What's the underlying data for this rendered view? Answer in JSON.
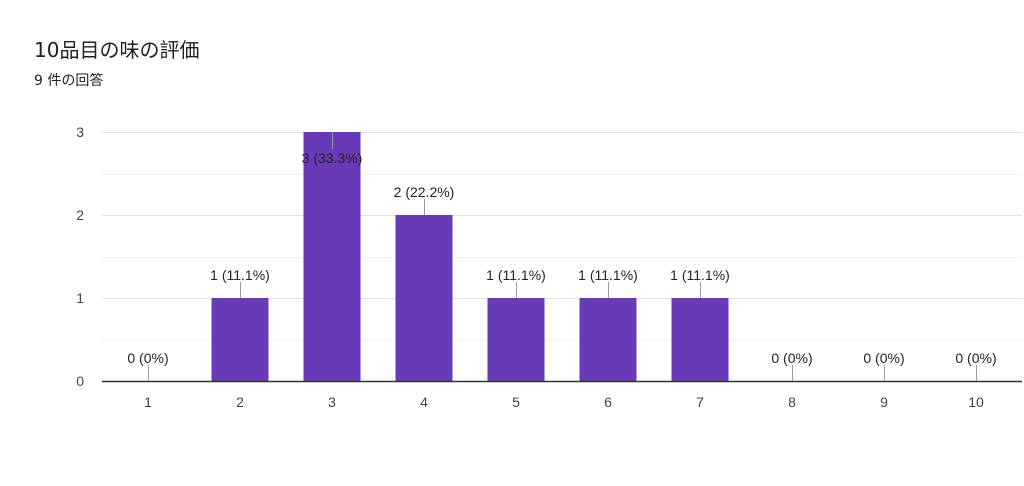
{
  "chart_data": {
    "type": "bar",
    "title": "10品目の味の評価",
    "subtitle": "9 件の回答",
    "categories": [
      "1",
      "2",
      "3",
      "4",
      "5",
      "6",
      "7",
      "8",
      "9",
      "10"
    ],
    "values": [
      0,
      1,
      3,
      2,
      1,
      1,
      1,
      0,
      0,
      0
    ],
    "data_labels": [
      "0 (0%)",
      "1 (11.1%)",
      "3 (33.3%)",
      "2 (22.2%)",
      "1 (11.1%)",
      "1 (11.1%)",
      "1 (11.1%)",
      "0 (0%)",
      "0 (0%)",
      "0 (0%)"
    ],
    "yticks": [
      "0",
      "1",
      "2",
      "3"
    ],
    "ylim": [
      0,
      3
    ],
    "grid": true,
    "bar_color": "#673ab7",
    "gridline_color": "#e0e0e0",
    "axis_color": "#333333"
  }
}
